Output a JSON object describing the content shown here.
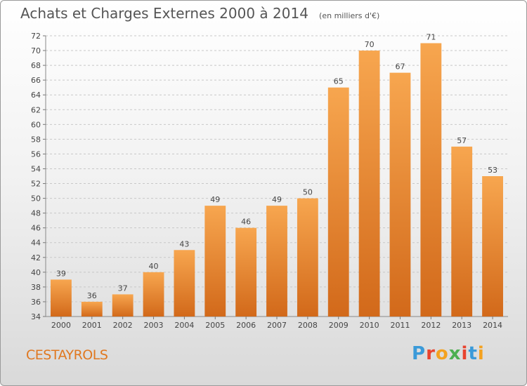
{
  "header": {
    "title": "Achats et Charges Externes 2000 à 2014",
    "unit": "(en milliers d'€)"
  },
  "footer": {
    "city": "CESTAYROLS",
    "logo_letters": [
      "P",
      "r",
      "o",
      "x",
      "i",
      "t",
      "i"
    ],
    "logo_colors": [
      "#3a9ad9",
      "#e8432e",
      "#f4a21f",
      "#4caf50",
      "#e8432e",
      "#3a9ad9",
      "#f4a21f"
    ]
  },
  "chart_data": {
    "type": "bar",
    "title": "Achats et Charges Externes 2000 à 2014",
    "subtitle": "(en milliers d'€)",
    "categories": [
      "2000",
      "2001",
      "2002",
      "2003",
      "2004",
      "2005",
      "2006",
      "2007",
      "2008",
      "2009",
      "2010",
      "2011",
      "2012",
      "2013",
      "2014"
    ],
    "values": [
      39,
      36,
      37,
      40,
      43,
      49,
      46,
      49,
      50,
      65,
      70,
      67,
      71,
      57,
      53
    ],
    "ylim": [
      34,
      72
    ],
    "yticks": [
      34,
      36,
      38,
      40,
      42,
      44,
      46,
      48,
      50,
      52,
      54,
      56,
      58,
      60,
      62,
      64,
      66,
      68,
      70,
      72
    ],
    "grid": true,
    "bar_color_top": "#f7a64f",
    "bar_color_bottom": "#d2691a"
  }
}
